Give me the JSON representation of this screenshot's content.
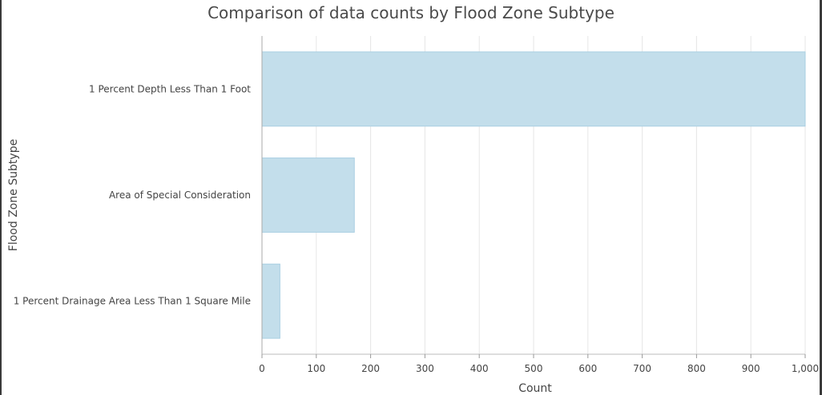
{
  "chart_data": {
    "type": "bar",
    "orientation": "horizontal",
    "title": "Comparison of data counts by Flood Zone Subtype",
    "xlabel": "Count",
    "ylabel": "Flood Zone Subtype",
    "categories": [
      "1 Percent Depth Less Than 1 Foot",
      "Area of Special Consideration",
      "1 Percent Drainage Area Less Than 1 Square Mile"
    ],
    "values": [
      1000,
      170,
      33
    ],
    "xlim": [
      0,
      1000
    ],
    "x_ticks": [
      0,
      100,
      200,
      300,
      400,
      500,
      600,
      700,
      800,
      900,
      1000
    ],
    "x_tick_labels": [
      "0",
      "100",
      "200",
      "300",
      "400",
      "500",
      "600",
      "700",
      "800",
      "900",
      "1,000"
    ],
    "grid": true,
    "legend": "none",
    "bar_color": "#c3deeb",
    "bar_border_color": "#a9cfe2"
  }
}
